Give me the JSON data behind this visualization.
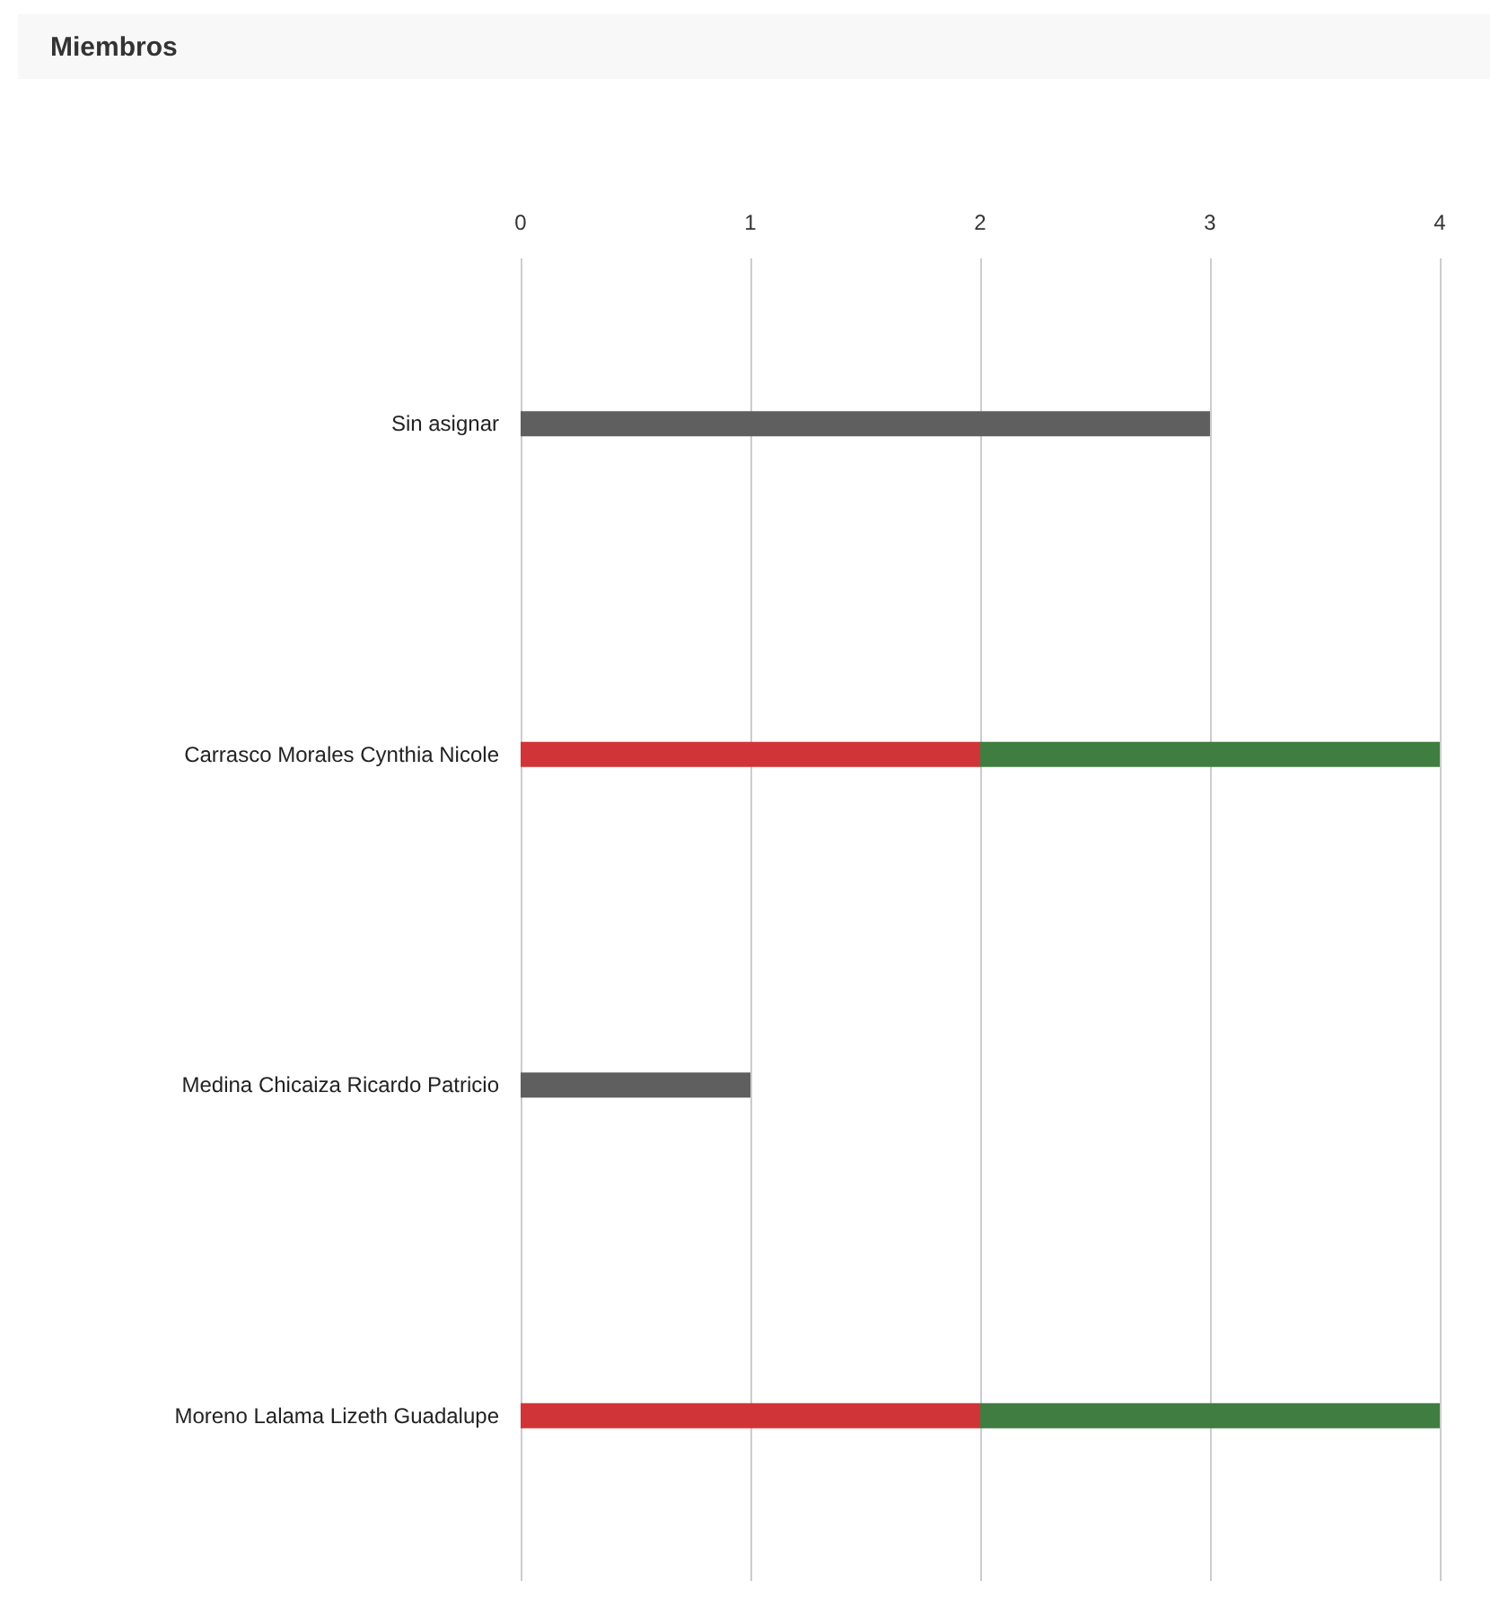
{
  "chart_data": {
    "type": "bar",
    "title": "Miembros",
    "orientation": "horizontal",
    "stacked": true,
    "grid": "x",
    "categories": [
      "Sin asignar",
      "Carrasco Morales Cynthia Nicole",
      "Medina Chicaiza Ricardo Patricio",
      "Moreno Lalama Lizeth Guadalupe"
    ],
    "series": [
      {
        "color": "#5f5f5f",
        "values": [
          3,
          null,
          1,
          null
        ]
      },
      {
        "color": "#d13438",
        "values": [
          null,
          2,
          null,
          2
        ]
      },
      {
        "color": "#407d41",
        "values": [
          null,
          2,
          null,
          2
        ]
      }
    ],
    "xlim": [
      0,
      4
    ],
    "xticks": [
      0,
      1,
      2,
      3,
      4
    ]
  }
}
